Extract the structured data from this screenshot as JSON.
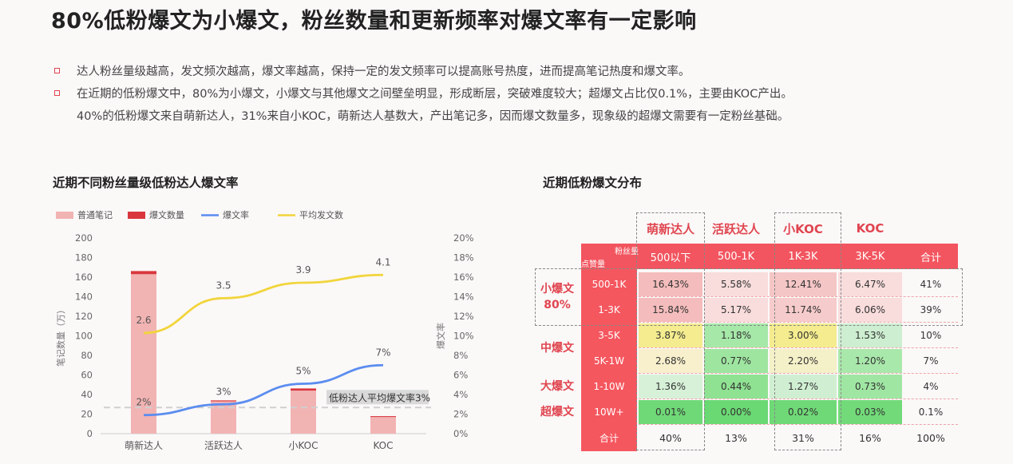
{
  "title": "80%低粉爆文为小爆文，粉丝数量和更新频率对爆文率有一定影响",
  "bullets": [
    "达人粉丝量级越高，发文频次越高，爆文率越高，保持一定的发文频率可以提高账号热度，进而提高笔记热度和爆文率。",
    "在近期的低粉爆文中，80%为小爆文，小爆文与其他爆文之间壁垒明显，形成断层，突破难度较大；超爆文占比仅0.1%，主要由KOC产出。",
    "40%的低粉爆文来自萌新达人，31%来自小KOC，萌新达人基数大，产出笔记多，因而爆文数量多，现象级的超爆文需要有一定粉丝基础。"
  ],
  "chart_title": "近期不同粉丝量级低粉达人爆文率",
  "table_title": "近期低粉爆文分布",
  "chart_data": [
    {
      "type": "bar",
      "title": "近期不同粉丝量级低粉达人爆文率",
      "categories": [
        "萌新达人",
        "活跃达人",
        "小KOC",
        "KOC"
      ],
      "legend": [
        "普通笔记",
        "爆文数量",
        "爆文率",
        "平均发文数"
      ],
      "legend_position": "top-left",
      "ylabel": "笔记数量（万）",
      "y2label": "爆文率",
      "ylim": [
        0,
        200
      ],
      "y2lim": [
        0,
        20
      ],
      "yticks": [
        "0",
        "20",
        "40",
        "60",
        "80",
        "100",
        "120",
        "140",
        "160",
        "180",
        "200"
      ],
      "y2ticks": [
        "0%",
        "2%",
        "4%",
        "6%",
        "8%",
        "10%",
        "12%",
        "14%",
        "16%",
        "18%",
        "20%"
      ],
      "series": [
        {
          "name": "普通笔记",
          "type": "bar",
          "values": [
            163,
            33,
            44,
            17
          ],
          "color": "#f2b3b3"
        },
        {
          "name": "爆文数量",
          "type": "bar",
          "values": [
            3.2,
            1.0,
            2.2,
            0.9
          ],
          "color": "#d9373d"
        },
        {
          "name": "爆文率",
          "type": "line",
          "axis": "right",
          "values": [
            1.9,
            3.0,
            5.1,
            7.0
          ],
          "labels": [
            "2%",
            "3%",
            "5%",
            "7%"
          ],
          "color": "#5b8def"
        },
        {
          "name": "平均发文数",
          "type": "line",
          "values": [
            2.6,
            3.5,
            3.9,
            4.1
          ],
          "labels": [
            "2.6",
            "3.5",
            "3.9",
            "4.1"
          ],
          "color": "#f1d53b"
        }
      ],
      "reference_line": {
        "label": "低粉达人平均爆文率3%",
        "value": 3
      }
    },
    {
      "type": "table",
      "title": "近期低粉爆文分布",
      "columns": [
        "萌新达人",
        "活跃达人",
        "小KOC",
        "KOC"
      ],
      "corner_top": "粉丝量",
      "corner_bottom": "点赞量",
      "subheaders": [
        "500以下",
        "500-1K",
        "1K-3K",
        "3K-5K",
        "合计"
      ],
      "groups": [
        {
          "label": "小爆文\n80%",
          "rows": [
            0,
            1
          ]
        },
        {
          "label": "中爆文",
          "rows": [
            2,
            3
          ]
        },
        {
          "label": "大爆文",
          "rows": [
            4
          ]
        },
        {
          "label": "超爆文",
          "rows": [
            5
          ]
        }
      ],
      "rows": [
        {
          "label": "500-1K",
          "values": [
            "16.43%",
            "5.58%",
            "12.41%",
            "6.47%"
          ],
          "total": "41%",
          "colors": [
            "#f4bcbc",
            "#f9dcdc",
            "#f5c6c6",
            "#f9dcdc"
          ]
        },
        {
          "label": "1-3K",
          "values": [
            "15.84%",
            "5.17%",
            "11.74%",
            "6.06%"
          ],
          "total": "39%",
          "colors": [
            "#f4bcbc",
            "#f9dcdc",
            "#f6cbcb",
            "#f9dcdc"
          ]
        },
        {
          "label": "3-5K",
          "values": [
            "3.87%",
            "1.18%",
            "3.00%",
            "1.53%"
          ],
          "total": "10%",
          "colors": [
            "#f4ec8e",
            "#a6e8a8",
            "#f4ec8e",
            "#cdeed0"
          ]
        },
        {
          "label": "5K-1W",
          "values": [
            "2.68%",
            "0.77%",
            "2.20%",
            "1.20%"
          ],
          "total": "7%",
          "colors": [
            "#f8f0cc",
            "#9ee5a0",
            "#f4f0c8",
            "#a9e8ab"
          ]
        },
        {
          "label": "1-10W",
          "values": [
            "1.36%",
            "0.44%",
            "1.27%",
            "0.73%"
          ],
          "total": "4%",
          "colors": [
            "#d7f1d8",
            "#8fe292",
            "#d0efd2",
            "#a0e6a3"
          ]
        },
        {
          "label": "10W+",
          "values": [
            "0.01%",
            "0.00%",
            "0.02%",
            "0.03%"
          ],
          "total": "0.1%",
          "colors": [
            "#6fd977",
            "#6ad873",
            "#6fd977",
            "#72da79"
          ]
        }
      ],
      "footer": {
        "label": "合计",
        "values": [
          "40%",
          "13%",
          "31%",
          "16%"
        ],
        "total": "100%"
      }
    }
  ]
}
